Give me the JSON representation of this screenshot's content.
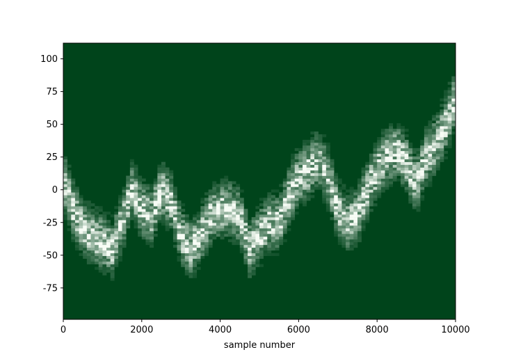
{
  "chart_data": {
    "type": "heatmap",
    "title": "",
    "xlabel": "sample number",
    "ylabel": "",
    "xlim": [
      0,
      10000
    ],
    "ylim": [
      -99,
      112
    ],
    "x_ticks": [
      0,
      2000,
      4000,
      6000,
      8000,
      10000
    ],
    "y_ticks": [
      -75,
      -50,
      -25,
      0,
      25,
      50,
      75,
      100
    ],
    "colormap": "Greens_r",
    "background_color": "#00441b",
    "high_color": "#f7fcf5",
    "bins_x": 100,
    "bins_y": 100,
    "density_path": {
      "description_of_trend": "noisy random-walk band",
      "x": [
        0,
        250,
        500,
        750,
        1000,
        1250,
        1500,
        1750,
        2000,
        2250,
        2500,
        2750,
        3000,
        3250,
        3500,
        3750,
        4000,
        4250,
        4500,
        4750,
        5000,
        5250,
        5500,
        5750,
        6000,
        6250,
        6500,
        6750,
        7000,
        7250,
        7500,
        7750,
        8000,
        8250,
        8500,
        8750,
        9000,
        9250,
        9500,
        9750,
        10000
      ],
      "y_center": [
        8,
        -15,
        -30,
        -35,
        -40,
        -45,
        -25,
        0,
        -15,
        -20,
        0,
        -10,
        -35,
        -45,
        -35,
        -20,
        -15,
        -15,
        -20,
        -45,
        -35,
        -25,
        -25,
        -5,
        10,
        15,
        25,
        10,
        -15,
        -25,
        -20,
        0,
        15,
        25,
        30,
        20,
        5,
        25,
        35,
        50,
        70
      ],
      "spread": 18
    }
  }
}
